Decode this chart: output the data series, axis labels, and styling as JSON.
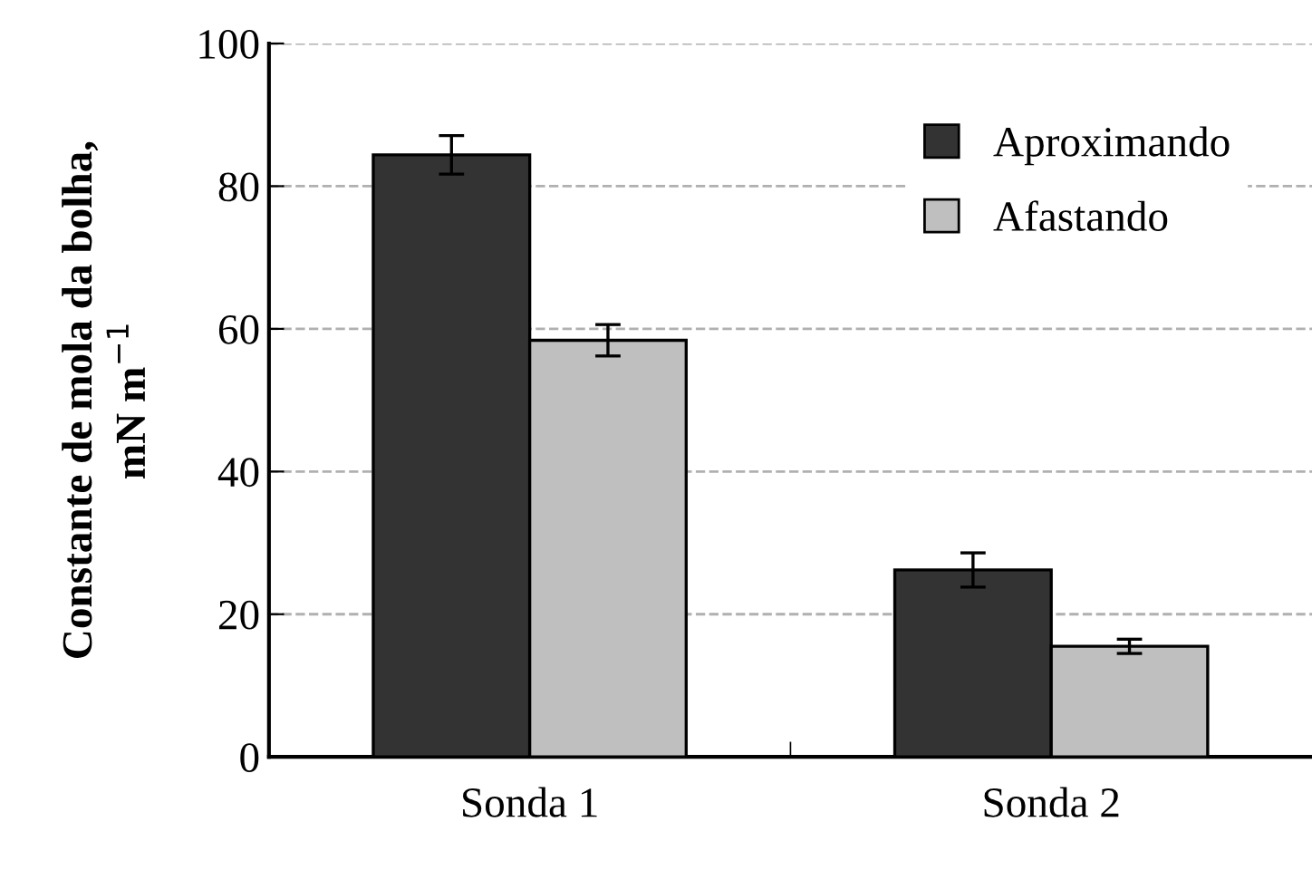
{
  "chart_data": {
    "type": "bar",
    "ylabel": "Constante de mola da bolha,\nmN m$^{−1}$",
    "categories": [
      "Sonda 1",
      "Sonda 2"
    ],
    "series": [
      {
        "name": "Aproximando",
        "color": "#333333",
        "values": [
          84.4,
          26.2
        ],
        "errors": [
          2.7,
          2.4
        ]
      },
      {
        "name": "Afastando",
        "color": "#bfbfbf",
        "values": [
          58.4,
          15.5
        ],
        "errors": [
          2.2,
          1.0
        ]
      }
    ],
    "ylim": [
      0,
      100
    ],
    "yticks": [
      0,
      20,
      40,
      60,
      80,
      100
    ],
    "grid": "y",
    "legend": "top right"
  }
}
